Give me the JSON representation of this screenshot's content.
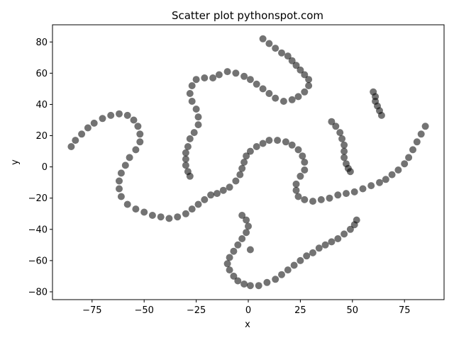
{
  "chart_data": {
    "type": "scatter",
    "title": "Scatter plot pythonspot.com",
    "xlabel": "x",
    "ylabel": "y",
    "xlim": [
      -94,
      94
    ],
    "ylim": [
      -85,
      91
    ],
    "xticks": [
      -75,
      -50,
      -25,
      0,
      25,
      50,
      75
    ],
    "xtick_labels": [
      "−75",
      "−50",
      "−25",
      "0",
      "25",
      "50",
      "75"
    ],
    "yticks": [
      -80,
      -60,
      -40,
      -20,
      0,
      20,
      40,
      60,
      80
    ],
    "ytick_labels": [
      "−80",
      "−60",
      "−40",
      "−20",
      "0",
      "20",
      "40",
      "60",
      "80"
    ],
    "grid": false,
    "marker_color": "#000000",
    "marker_alpha": 0.55,
    "series": [
      {
        "points": [
          [
            -85,
            13
          ],
          [
            -83,
            17
          ],
          [
            -80,
            21
          ],
          [
            -77,
            25
          ],
          [
            -74,
            28
          ],
          [
            -70,
            31
          ],
          [
            -66,
            33
          ],
          [
            -62,
            34
          ],
          [
            -58,
            33
          ],
          [
            -55,
            30
          ],
          [
            -53,
            26
          ],
          [
            -52,
            21
          ],
          [
            -52,
            16
          ],
          [
            -54,
            11
          ],
          [
            -57,
            6
          ],
          [
            -59,
            1
          ],
          [
            -61,
            -4
          ],
          [
            -62,
            -9
          ],
          [
            -62,
            -14
          ],
          [
            -61,
            -19
          ],
          [
            -58,
            -24
          ],
          [
            -54,
            -27
          ],
          [
            -50,
            -29
          ],
          [
            -46,
            -31
          ],
          [
            -42,
            -32
          ],
          [
            -38,
            -33
          ],
          [
            -34,
            -32
          ],
          [
            -30,
            -30
          ],
          [
            -27,
            -27
          ],
          [
            -24,
            -24
          ],
          [
            -21,
            -21
          ],
          [
            -18,
            -18
          ],
          [
            -15,
            -17
          ],
          [
            -12,
            -15
          ],
          [
            -9,
            -13
          ],
          [
            -6,
            -9
          ],
          [
            -4,
            -5
          ],
          [
            -3,
            -1
          ],
          [
            -2,
            3
          ],
          [
            -1,
            7
          ],
          [
            1,
            10
          ],
          [
            4,
            13
          ],
          [
            7,
            15
          ],
          [
            10,
            17
          ],
          [
            14,
            17
          ],
          [
            18,
            16
          ],
          [
            21,
            14
          ],
          [
            24,
            11
          ],
          [
            26,
            7
          ],
          [
            27,
            3
          ],
          [
            27,
            -2
          ],
          [
            25,
            -6
          ],
          [
            23,
            -11
          ],
          [
            23,
            -15
          ],
          [
            24,
            -19
          ],
          [
            27,
            -21
          ],
          [
            31,
            -22
          ],
          [
            35,
            -21
          ],
          [
            39,
            -20
          ],
          [
            43,
            -18
          ],
          [
            47,
            -17
          ],
          [
            51,
            -16
          ],
          [
            55,
            -14
          ],
          [
            59,
            -12
          ],
          [
            63,
            -10
          ],
          [
            66,
            -8
          ],
          [
            69,
            -5
          ],
          [
            72,
            -2
          ],
          [
            75,
            2
          ],
          [
            77,
            6
          ],
          [
            79,
            11
          ],
          [
            81,
            16
          ],
          [
            83,
            21
          ],
          [
            85,
            26
          ],
          [
            7,
            82
          ],
          [
            10,
            79
          ],
          [
            13,
            76
          ],
          [
            16,
            73
          ],
          [
            19,
            71
          ],
          [
            21,
            68
          ],
          [
            23,
            65
          ],
          [
            25,
            62
          ],
          [
            27,
            59
          ],
          [
            29,
            56
          ],
          [
            29,
            52
          ],
          [
            27,
            48
          ],
          [
            24,
            45
          ],
          [
            21,
            43
          ],
          [
            17,
            42
          ],
          [
            13,
            44
          ],
          [
            10,
            47
          ],
          [
            7,
            50
          ],
          [
            4,
            53
          ],
          [
            1,
            56
          ],
          [
            -2,
            58
          ],
          [
            -6,
            60
          ],
          [
            -10,
            61
          ],
          [
            -14,
            59
          ],
          [
            -17,
            57
          ],
          [
            -21,
            57
          ],
          [
            -25,
            56
          ],
          [
            -27,
            52
          ],
          [
            -28,
            47
          ],
          [
            -27,
            42
          ],
          [
            -25,
            37
          ],
          [
            -24,
            32
          ],
          [
            -24,
            27
          ],
          [
            -26,
            22
          ],
          [
            -28,
            18
          ],
          [
            -29,
            13
          ],
          [
            -30,
            9
          ],
          [
            -30,
            5
          ],
          [
            -30,
            1
          ],
          [
            -29,
            -3
          ],
          [
            -28,
            -6
          ],
          [
            40,
            29
          ],
          [
            42,
            26
          ],
          [
            44,
            22
          ],
          [
            45,
            18
          ],
          [
            46,
            14
          ],
          [
            46,
            10
          ],
          [
            46,
            6
          ],
          [
            47,
            2
          ],
          [
            48,
            -1
          ],
          [
            49,
            -3
          ],
          [
            60,
            48
          ],
          [
            61,
            45
          ],
          [
            61,
            42
          ],
          [
            62,
            39
          ],
          [
            63,
            36
          ],
          [
            64,
            33
          ],
          [
            -3,
            -31
          ],
          [
            -1,
            -34
          ],
          [
            0,
            -38
          ],
          [
            -1,
            -42
          ],
          [
            -3,
            -46
          ],
          [
            -5,
            -50
          ],
          [
            -7,
            -54
          ],
          [
            -9,
            -58
          ],
          [
            -10,
            -62
          ],
          [
            -9,
            -66
          ],
          [
            -7,
            -70
          ],
          [
            -5,
            -73
          ],
          [
            -2,
            -75
          ],
          [
            1,
            -76
          ],
          [
            5,
            -76
          ],
          [
            9,
            -74
          ],
          [
            13,
            -72
          ],
          [
            16,
            -69
          ],
          [
            19,
            -66
          ],
          [
            22,
            -63
          ],
          [
            25,
            -60
          ],
          [
            28,
            -57
          ],
          [
            31,
            -55
          ],
          [
            34,
            -52
          ],
          [
            37,
            -50
          ],
          [
            40,
            -48
          ],
          [
            43,
            -46
          ],
          [
            46,
            -43
          ],
          [
            49,
            -40
          ],
          [
            51,
            -37
          ],
          [
            52,
            -34
          ],
          [
            1,
            -53
          ]
        ]
      }
    ]
  }
}
